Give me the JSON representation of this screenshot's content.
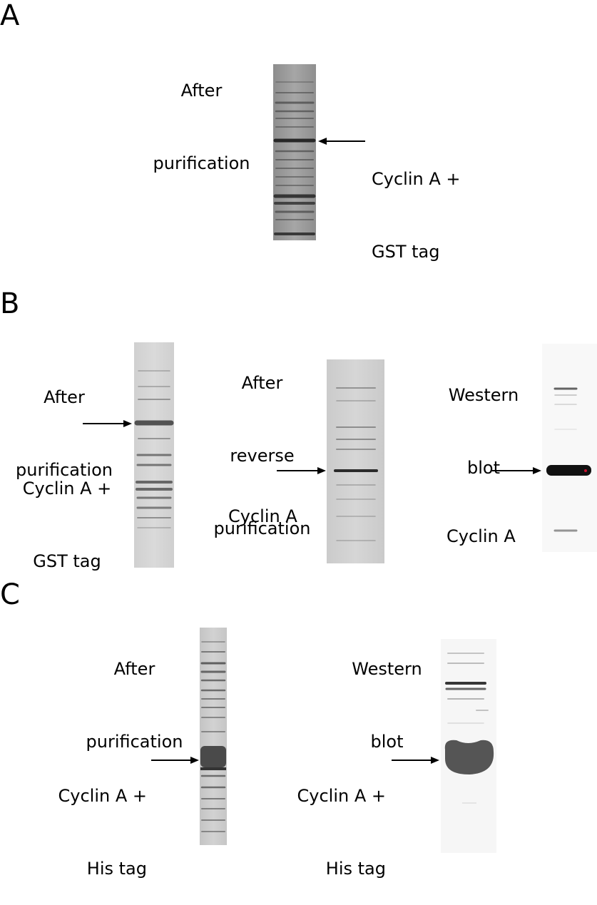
{
  "panels": {
    "a": {
      "letter": "A",
      "lanes": [
        {
          "title_lines": [
            "After",
            "purification"
          ]
        }
      ],
      "annotations": [
        {
          "lines": [
            "Cyclin A +",
            "GST tag"
          ]
        }
      ]
    },
    "b": {
      "letter": "B",
      "lanes": [
        {
          "title_lines": [
            "After",
            "purification"
          ]
        },
        {
          "title_lines": [
            "After",
            "reverse",
            "purification"
          ]
        },
        {
          "title_lines": [
            "Western",
            "blot"
          ]
        }
      ],
      "annotations": [
        {
          "lines": [
            "Cyclin A +",
            "GST tag"
          ]
        },
        {
          "lines": [
            "Cyclin A"
          ]
        },
        {
          "lines": [
            "Cyclin A"
          ]
        }
      ]
    },
    "c": {
      "letter": "C",
      "lanes": [
        {
          "title_lines": [
            "After",
            "purification"
          ]
        },
        {
          "title_lines": [
            "Western",
            "blot"
          ]
        }
      ],
      "annotations": [
        {
          "lines": [
            "Cyclin A +",
            "His tag"
          ]
        },
        {
          "lines": [
            "Cyclin A +",
            "His tag"
          ]
        }
      ]
    }
  }
}
